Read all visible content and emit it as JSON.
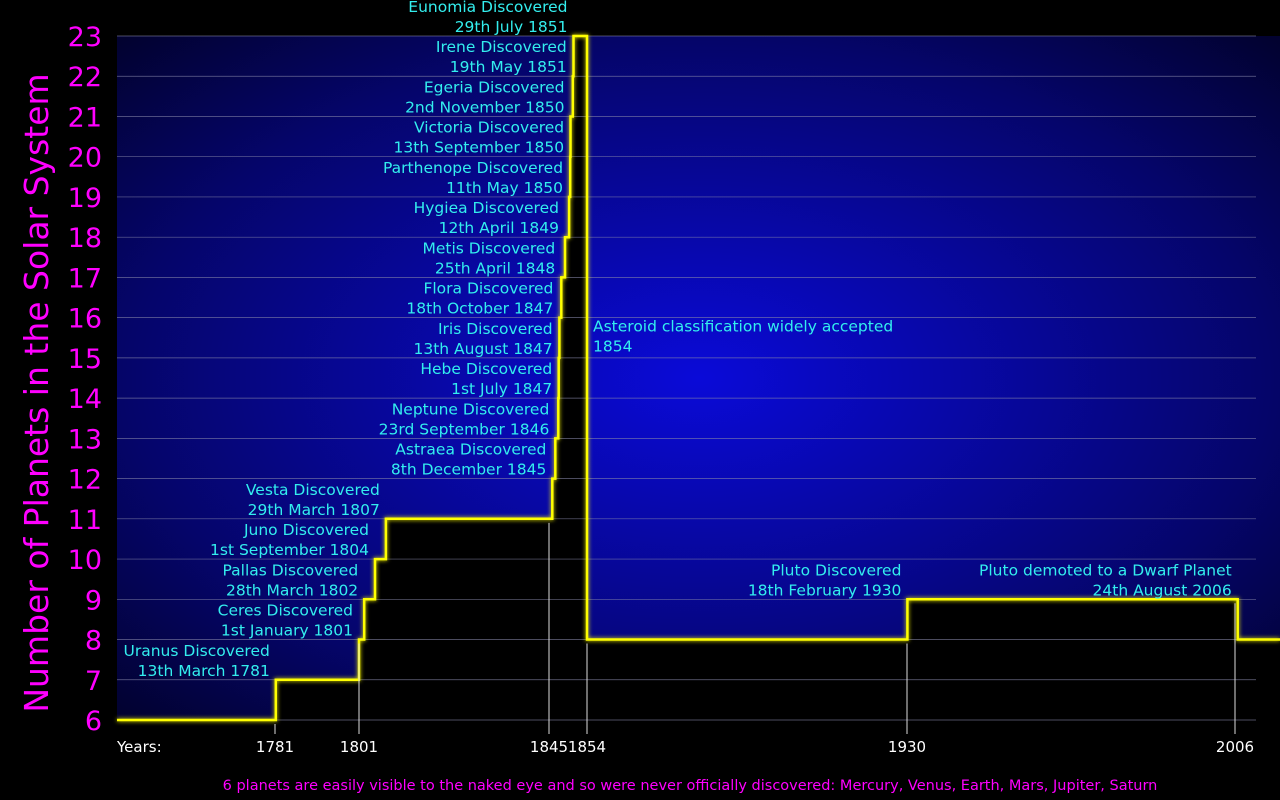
{
  "chart_data": {
    "type": "line",
    "step": true,
    "ylabel": "Number of Planets in the Solar System",
    "x_axis_prefix": "Years:",
    "x_ticks": [
      1781,
      1801,
      1845,
      1854,
      1930,
      2006
    ],
    "y_ticks": [
      6,
      7,
      8,
      9,
      10,
      11,
      12,
      13,
      14,
      15,
      16,
      17,
      18,
      19,
      20,
      21,
      22,
      23
    ],
    "ylim": [
      6,
      23
    ],
    "xlim": [
      1760,
      2016
    ],
    "grid": true,
    "colors": {
      "line": "#ffff00",
      "fill": "#0a0ad8",
      "ylabel": "#ff00ff",
      "annotation": "#33eeee",
      "tick_x": "#ffffff",
      "footnote": "#ff00ff"
    },
    "series": [
      {
        "points": [
          {
            "x": 1760,
            "y": 6
          },
          {
            "x": 1781.2,
            "y": 7
          },
          {
            "x": 1801.0,
            "y": 8
          },
          {
            "x": 1802.2,
            "y": 9
          },
          {
            "x": 1804.7,
            "y": 10
          },
          {
            "x": 1807.2,
            "y": 11
          },
          {
            "x": 1845.9,
            "y": 12
          },
          {
            "x": 1846.7,
            "y": 13
          },
          {
            "x": 1847.5,
            "y": 14
          },
          {
            "x": 1847.6,
            "y": 15
          },
          {
            "x": 1847.8,
            "y": 16
          },
          {
            "x": 1848.3,
            "y": 17
          },
          {
            "x": 1849.3,
            "y": 18
          },
          {
            "x": 1850.4,
            "y": 19
          },
          {
            "x": 1850.7,
            "y": 20
          },
          {
            "x": 1850.8,
            "y": 21
          },
          {
            "x": 1851.4,
            "y": 22
          },
          {
            "x": 1851.6,
            "y": 23
          },
          {
            "x": 1854,
            "y": 8
          },
          {
            "x": 1930.1,
            "y": 9
          },
          {
            "x": 2006.6,
            "y": 8
          }
        ]
      }
    ],
    "annotations": [
      {
        "line1": "Uranus Discovered",
        "line2": "13th March 1781",
        "x": 1781.2,
        "y": 7,
        "side": "left"
      },
      {
        "line1": "Ceres Discovered",
        "line2": "1st January 1801",
        "x": 1801.0,
        "y": 8,
        "side": "left"
      },
      {
        "line1": "Pallas Discovered",
        "line2": "28th March 1802",
        "x": 1802.2,
        "y": 9,
        "side": "left"
      },
      {
        "line1": "Juno Discovered",
        "line2": "1st September 1804",
        "x": 1804.7,
        "y": 10,
        "side": "left"
      },
      {
        "line1": "Vesta Discovered",
        "line2": "29th March 1807",
        "x": 1807.2,
        "y": 11,
        "side": "left"
      },
      {
        "line1": "Astraea Discovered",
        "line2": "8th December 1845",
        "x": 1845.9,
        "y": 12,
        "side": "left"
      },
      {
        "line1": "Neptune Discovered",
        "line2": "23rd September 1846",
        "x": 1846.7,
        "y": 13,
        "side": "left"
      },
      {
        "line1": "Hebe Discovered",
        "line2": "1st July 1847",
        "x": 1847.5,
        "y": 14,
        "side": "left"
      },
      {
        "line1": "Iris Discovered",
        "line2": "13th August 1847",
        "x": 1847.6,
        "y": 15,
        "side": "left"
      },
      {
        "line1": "Flora Discovered",
        "line2": "18th October 1847",
        "x": 1847.8,
        "y": 16,
        "side": "left"
      },
      {
        "line1": "Metis Discovered",
        "line2": "25th April 1848",
        "x": 1848.3,
        "y": 17,
        "side": "left"
      },
      {
        "line1": "Hygiea Discovered",
        "line2": "12th April 1849",
        "x": 1849.3,
        "y": 18,
        "side": "left"
      },
      {
        "line1": "Parthenope Discovered",
        "line2": "11th May 1850",
        "x": 1850.4,
        "y": 19,
        "side": "left"
      },
      {
        "line1": "Victoria Discovered",
        "line2": "13th September 1850",
        "x": 1850.7,
        "y": 20,
        "side": "left"
      },
      {
        "line1": "Egeria Discovered",
        "line2": "2nd November 1850",
        "x": 1850.8,
        "y": 21,
        "side": "left"
      },
      {
        "line1": "Irene Discovered",
        "line2": "19th May 1851",
        "x": 1851.4,
        "y": 22,
        "side": "left"
      },
      {
        "line1": "Eunomia Discovered",
        "line2": "29th July 1851",
        "x": 1851.6,
        "y": 23,
        "side": "left"
      },
      {
        "line1": "Asteroid classification widely accepted",
        "line2": "1854",
        "x": 1854,
        "y": 16,
        "side": "right"
      },
      {
        "line1": "Pluto Discovered",
        "line2": "18th February 1930",
        "x": 1930.1,
        "y": 9,
        "side": "left"
      },
      {
        "line1": "Pluto demoted to a Dwarf Planet",
        "line2": "24th August 2006",
        "x": 2006.6,
        "y": 9,
        "side": "left"
      }
    ],
    "footnote": "6 planets are easily visible to the naked eye and so were never officially discovered: Mercury, Venus, Earth, Mars, Jupiter, Saturn"
  }
}
